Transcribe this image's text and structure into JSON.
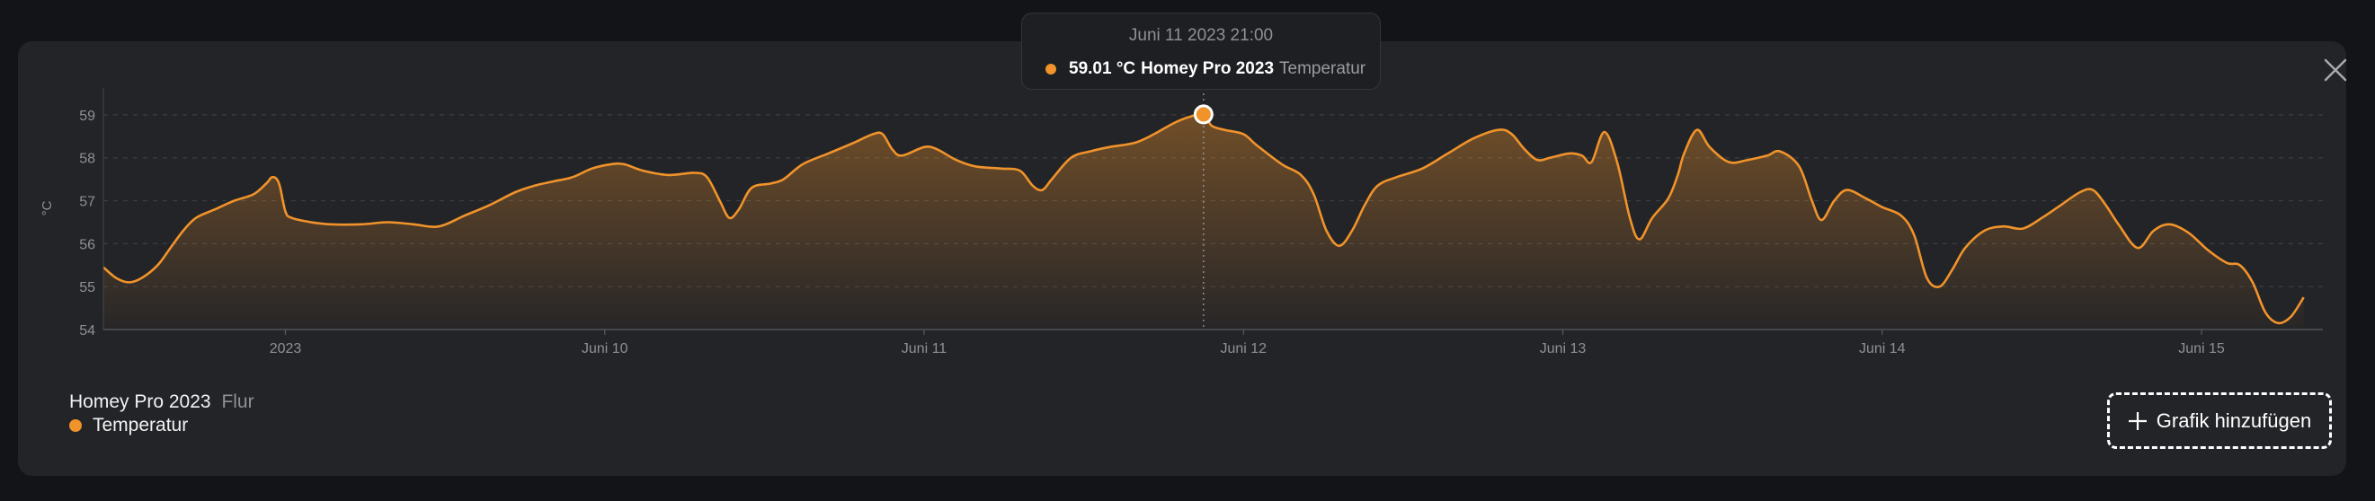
{
  "card": {
    "close_icon": "close-icon",
    "tooltip": {
      "date": "Juni 11 2023 21:00",
      "value": "59.01 °C",
      "device": "Homey Pro 2023",
      "capability": "Temperatur"
    },
    "legend": {
      "device_name": "Homey Pro 2023",
      "zone": "Flur",
      "capability": "Temperatur"
    },
    "add_button": {
      "label": "Grafik hinzufügen",
      "icon": "plus-icon"
    }
  },
  "colors": {
    "accent": "#f0932b",
    "background": "#131418",
    "panel": "#232427"
  },
  "chart_data": {
    "type": "area",
    "ylabel": "°C",
    "ylim": [
      54,
      59.5
    ],
    "yticks": [
      54,
      55,
      56,
      57,
      58,
      59
    ],
    "xlim": [
      -0.57,
      6.38
    ],
    "xticks": [
      {
        "x": 0,
        "label": "2023"
      },
      {
        "x": 1,
        "label": "Juni 10"
      },
      {
        "x": 2,
        "label": "Juni 11"
      },
      {
        "x": 3,
        "label": "Juni 12"
      },
      {
        "x": 4,
        "label": "Juni 13"
      },
      {
        "x": 5,
        "label": "Juni 14"
      },
      {
        "x": 6,
        "label": "Juni 15"
      }
    ],
    "grid": true,
    "legend": "bottom-left",
    "highlight": {
      "x": 2.875,
      "y": 59.01
    },
    "series": [
      {
        "name": "Temperatur",
        "points": [
          [
            -0.57,
            55.45
          ],
          [
            -0.53,
            55.2
          ],
          [
            -0.49,
            55.1
          ],
          [
            -0.45,
            55.2
          ],
          [
            -0.4,
            55.5
          ],
          [
            -0.36,
            55.9
          ],
          [
            -0.32,
            56.3
          ],
          [
            -0.28,
            56.6
          ],
          [
            -0.22,
            56.8
          ],
          [
            -0.16,
            57.0
          ],
          [
            -0.1,
            57.15
          ],
          [
            -0.06,
            57.4
          ],
          [
            -0.04,
            57.55
          ],
          [
            -0.02,
            57.4
          ],
          [
            0.0,
            56.75
          ],
          [
            0.02,
            56.6
          ],
          [
            0.08,
            56.5
          ],
          [
            0.14,
            56.45
          ],
          [
            0.24,
            56.45
          ],
          [
            0.32,
            56.5
          ],
          [
            0.4,
            56.45
          ],
          [
            0.48,
            56.4
          ],
          [
            0.56,
            56.65
          ],
          [
            0.64,
            56.9
          ],
          [
            0.72,
            57.2
          ],
          [
            0.78,
            57.35
          ],
          [
            0.84,
            57.45
          ],
          [
            0.9,
            57.55
          ],
          [
            0.96,
            57.75
          ],
          [
            1.02,
            57.85
          ],
          [
            1.06,
            57.85
          ],
          [
            1.12,
            57.7
          ],
          [
            1.2,
            57.6
          ],
          [
            1.28,
            57.65
          ],
          [
            1.32,
            57.55
          ],
          [
            1.36,
            57.0
          ],
          [
            1.39,
            56.6
          ],
          [
            1.42,
            56.8
          ],
          [
            1.46,
            57.3
          ],
          [
            1.52,
            57.4
          ],
          [
            1.56,
            57.5
          ],
          [
            1.62,
            57.85
          ],
          [
            1.7,
            58.1
          ],
          [
            1.78,
            58.35
          ],
          [
            1.84,
            58.55
          ],
          [
            1.87,
            58.55
          ],
          [
            1.9,
            58.2
          ],
          [
            1.93,
            58.05
          ],
          [
            2.0,
            58.25
          ],
          [
            2.04,
            58.2
          ],
          [
            2.1,
            57.95
          ],
          [
            2.16,
            57.8
          ],
          [
            2.24,
            57.75
          ],
          [
            2.3,
            57.7
          ],
          [
            2.34,
            57.35
          ],
          [
            2.37,
            57.25
          ],
          [
            2.4,
            57.5
          ],
          [
            2.46,
            58.0
          ],
          [
            2.52,
            58.15
          ],
          [
            2.58,
            58.25
          ],
          [
            2.66,
            58.35
          ],
          [
            2.72,
            58.55
          ],
          [
            2.78,
            58.8
          ],
          [
            2.83,
            58.95
          ],
          [
            2.875,
            59.01
          ],
          [
            2.9,
            58.75
          ],
          [
            2.94,
            58.65
          ],
          [
            3.0,
            58.55
          ],
          [
            3.04,
            58.3
          ],
          [
            3.12,
            57.85
          ],
          [
            3.18,
            57.6
          ],
          [
            3.22,
            57.15
          ],
          [
            3.26,
            56.3
          ],
          [
            3.3,
            55.95
          ],
          [
            3.34,
            56.3
          ],
          [
            3.38,
            56.9
          ],
          [
            3.42,
            57.35
          ],
          [
            3.48,
            57.55
          ],
          [
            3.56,
            57.75
          ],
          [
            3.64,
            58.1
          ],
          [
            3.72,
            58.45
          ],
          [
            3.8,
            58.65
          ],
          [
            3.84,
            58.55
          ],
          [
            3.88,
            58.2
          ],
          [
            3.92,
            57.95
          ],
          [
            3.96,
            58.0
          ],
          [
            4.02,
            58.1
          ],
          [
            4.06,
            58.05
          ],
          [
            4.09,
            57.9
          ],
          [
            4.13,
            58.6
          ],
          [
            4.17,
            57.9
          ],
          [
            4.21,
            56.6
          ],
          [
            4.24,
            56.1
          ],
          [
            4.28,
            56.6
          ],
          [
            4.33,
            57.05
          ],
          [
            4.36,
            57.6
          ],
          [
            4.38,
            58.1
          ],
          [
            4.42,
            58.65
          ],
          [
            4.46,
            58.25
          ],
          [
            4.52,
            57.9
          ],
          [
            4.58,
            57.95
          ],
          [
            4.64,
            58.05
          ],
          [
            4.68,
            58.15
          ],
          [
            4.74,
            57.8
          ],
          [
            4.78,
            57.0
          ],
          [
            4.81,
            56.55
          ],
          [
            4.85,
            57.0
          ],
          [
            4.89,
            57.25
          ],
          [
            4.95,
            57.05
          ],
          [
            5.0,
            56.85
          ],
          [
            5.06,
            56.65
          ],
          [
            5.1,
            56.2
          ],
          [
            5.14,
            55.2
          ],
          [
            5.18,
            55.0
          ],
          [
            5.22,
            55.4
          ],
          [
            5.26,
            55.9
          ],
          [
            5.32,
            56.3
          ],
          [
            5.38,
            56.4
          ],
          [
            5.44,
            56.35
          ],
          [
            5.5,
            56.6
          ],
          [
            5.56,
            56.9
          ],
          [
            5.62,
            57.2
          ],
          [
            5.66,
            57.25
          ],
          [
            5.7,
            56.9
          ],
          [
            5.74,
            56.45
          ],
          [
            5.8,
            55.9
          ],
          [
            5.85,
            56.3
          ],
          [
            5.9,
            56.45
          ],
          [
            5.96,
            56.25
          ],
          [
            6.02,
            55.85
          ],
          [
            6.08,
            55.55
          ],
          [
            6.12,
            55.5
          ],
          [
            6.16,
            55.1
          ],
          [
            6.2,
            54.4
          ],
          [
            6.24,
            54.15
          ],
          [
            6.28,
            54.3
          ],
          [
            6.32,
            54.75
          ]
        ]
      }
    ]
  }
}
